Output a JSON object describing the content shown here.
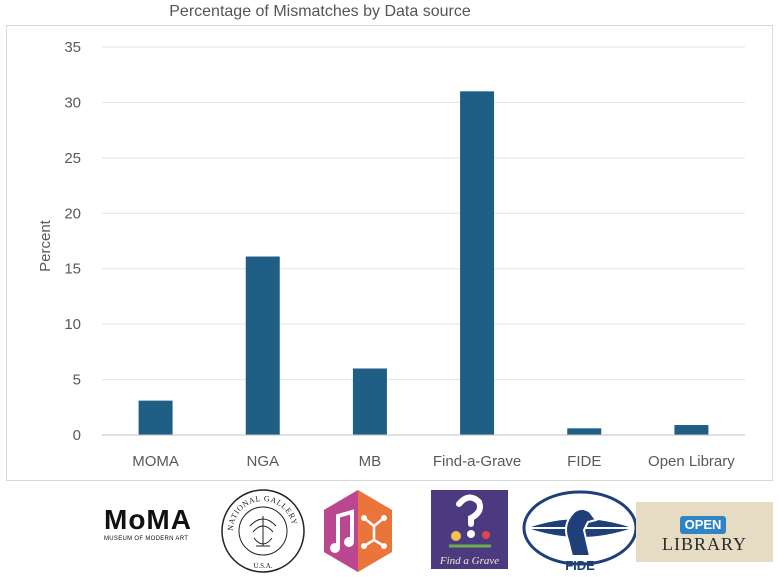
{
  "chart_data": {
    "type": "bar",
    "title": "Percentage of Mismatches by Data source",
    "ylabel": "Percent",
    "xlabel": "",
    "categories": [
      "MOMA",
      "NGA",
      "MB",
      "Find-a-Grave",
      "FIDE",
      "Open Library"
    ],
    "values": [
      3.1,
      16.1,
      6.0,
      31.0,
      0.6,
      0.9
    ],
    "ylim": [
      0,
      35
    ],
    "yticks": [
      0,
      5,
      10,
      15,
      20,
      25,
      30,
      35
    ],
    "grid": true,
    "legend": "none",
    "bar_color": "#1f5f85"
  },
  "logos": {
    "moma": {
      "wordmark": "MoMA",
      "subtitle": "MUSEUM OF MODERN ART"
    },
    "nga": {
      "ring_text": "NATIONAL GALLERY OF ART",
      "bottom_text": "U.S.A."
    },
    "mb": {
      "icon": "musicbrainz-icon"
    },
    "findagrave": {
      "wordmark": "Find a Grave"
    },
    "fide": {
      "wordmark": "FIDE"
    },
    "openlibrary": {
      "badge": "OPEN",
      "wordmark": "LIBRARY"
    }
  }
}
